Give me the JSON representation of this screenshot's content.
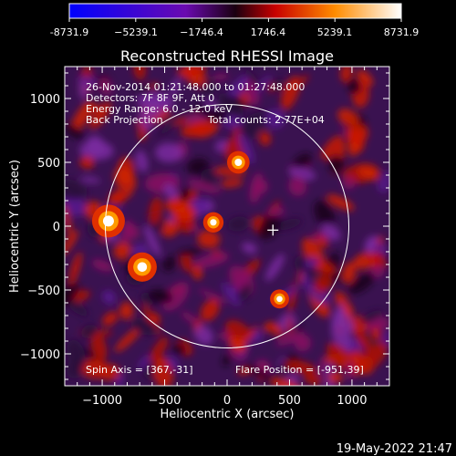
{
  "colorbar": {
    "ticks": [
      "-8731.9",
      "−5239.1",
      "−1746.4",
      "1746.4",
      "5239.1",
      "8731.9"
    ]
  },
  "chart_data": {
    "type": "heatmap",
    "title": "Reconstructed RHESSI Image",
    "xlabel": "Heliocentric X (arcsec)",
    "ylabel": "Heliocentric Y (arcsec)",
    "xlim": [
      -1300,
      1300
    ],
    "ylim": [
      -1250,
      1250
    ],
    "xticks": [
      -1000,
      -500,
      0,
      500,
      1000
    ],
    "yticks": [
      -1000,
      -500,
      0,
      500,
      1000
    ],
    "xtick_labels": [
      "−1000",
      "−500",
      "0",
      "500",
      "1000"
    ],
    "ytick_labels": [
      "−1000",
      "−500",
      "0",
      "500",
      "1000"
    ],
    "colorbar_range": [
      -8731.9,
      8731.9
    ],
    "solar_disk_radius_arcsec": 975,
    "marker": [
      367,
      -31
    ],
    "annotations": [
      "26-Nov-2014 01:21:48.000 to 01:27:48.000",
      "Detectors: 7F 8F 9F, Att 0",
      "Energy Range: 6.0 - 12.0 keV",
      "Back Projection",
      "Total counts: 2.77E+04",
      "Spin Axis = [367,-31]",
      "Flare Position = [-951,39]"
    ],
    "bright_sources": [
      {
        "x": -950,
        "y": 40,
        "intensity": 8731.9
      },
      {
        "x": -680,
        "y": -320,
        "intensity": 7500
      },
      {
        "x": 90,
        "y": 500,
        "intensity": 5200
      },
      {
        "x": -110,
        "y": 30,
        "intensity": 4500
      },
      {
        "x": 420,
        "y": -570,
        "intensity": 4000
      }
    ]
  },
  "footer": {
    "timestamp": "19-May-2022 21:47"
  }
}
